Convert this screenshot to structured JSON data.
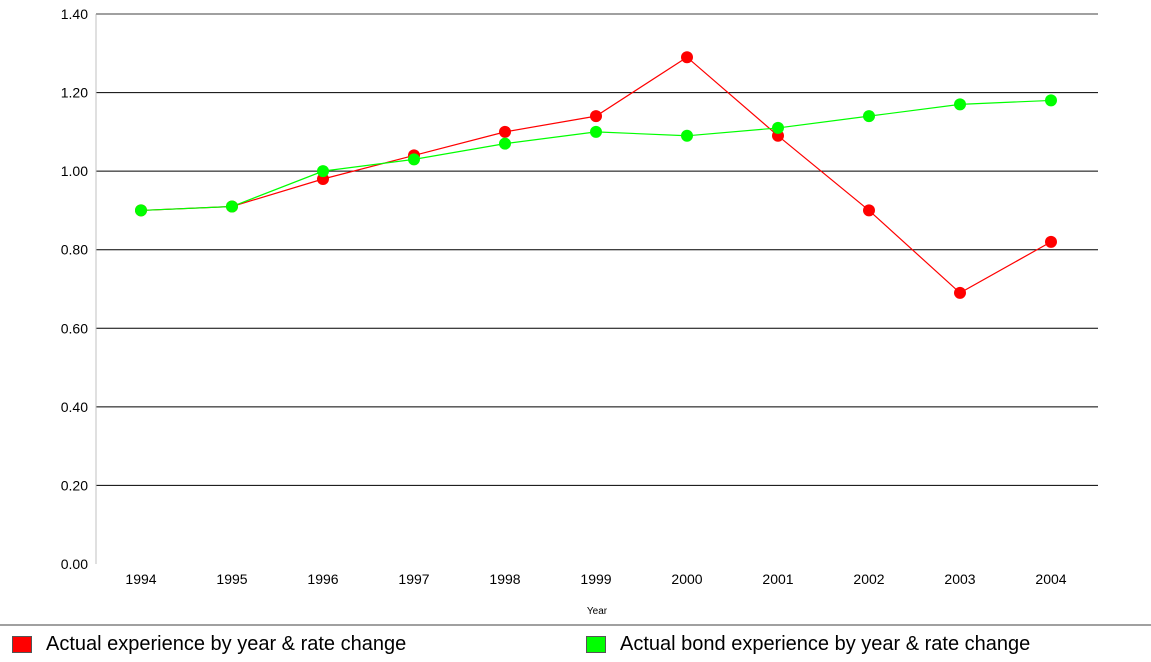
{
  "chart_data": {
    "type": "line",
    "xlabel": "Year",
    "ylabel": "",
    "ylim": [
      0,
      1.4
    ],
    "yticks": [
      "0.00",
      "0.20",
      "0.40",
      "0.60",
      "0.80",
      "1.00",
      "1.20",
      "1.40"
    ],
    "categories": [
      "1994",
      "1995",
      "1996",
      "1997",
      "1998",
      "1999",
      "2000",
      "2001",
      "2002",
      "2003",
      "2004"
    ],
    "grid": true,
    "legend_position": "bottom",
    "series": [
      {
        "name": "Actual experience by year & rate change",
        "color": "#ff0000",
        "values": [
          0.9,
          0.91,
          0.98,
          1.04,
          1.1,
          1.14,
          1.29,
          1.09,
          0.9,
          0.69,
          0.82
        ]
      },
      {
        "name": "Actual bond experience by year & rate change",
        "color": "#00ff00",
        "values": [
          0.9,
          0.91,
          1.0,
          1.03,
          1.07,
          1.1,
          1.09,
          1.11,
          1.14,
          1.17,
          1.18
        ]
      }
    ]
  }
}
